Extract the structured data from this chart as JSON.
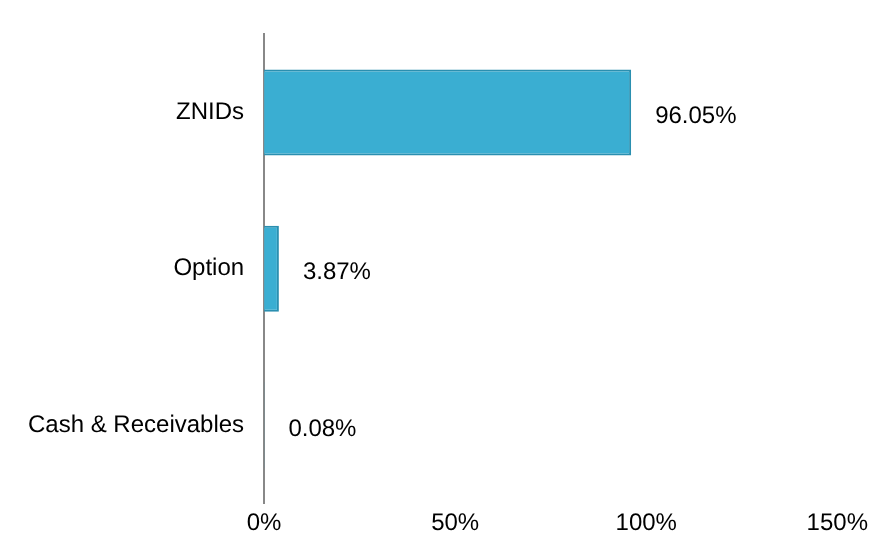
{
  "chart_data": {
    "type": "bar",
    "orientation": "horizontal",
    "categories": [
      "ZNIDs",
      "Option",
      "Cash & Receivables"
    ],
    "values": [
      96.05,
      3.87,
      0.08
    ],
    "value_labels": [
      "96.05%",
      "3.87%",
      "0.08%"
    ],
    "color": "#3aaed2",
    "xlim": [
      0,
      150
    ],
    "xticks": [
      {
        "value": 0,
        "label": "0%"
      },
      {
        "value": 50,
        "label": "50%"
      },
      {
        "value": 100,
        "label": "100%"
      },
      {
        "value": 150,
        "label": "150%"
      }
    ],
    "grid": false,
    "legend": false
  }
}
